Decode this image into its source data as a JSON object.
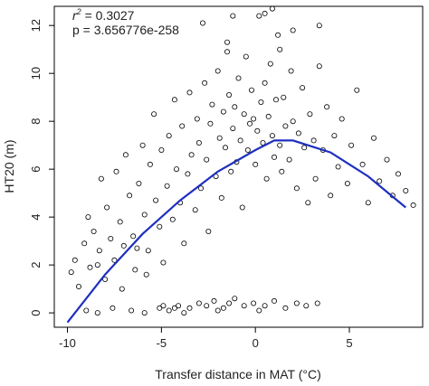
{
  "chart_data": {
    "type": "scatter",
    "xlabel": "Transfer distance in MAT (°C)",
    "ylabel": "HT20 (m)",
    "xlim": [
      -10.7,
      8.9
    ],
    "ylim": [
      -0.6,
      12.8
    ],
    "xticks": [
      -10,
      -5,
      0,
      5
    ],
    "yticks": [
      0,
      2,
      4,
      6,
      8,
      10,
      12
    ],
    "grid": false,
    "annotations": {
      "r2_label": "r",
      "r2_sup": "2",
      "r2_value": " = 0.3027",
      "p_text": "p = 3.656776e-258"
    },
    "point_style": {
      "marker": "open-circle",
      "color": "#000000"
    },
    "fit_curve": {
      "color": "#1f2fbf",
      "x": [
        -10,
        -8,
        -6,
        -4,
        -2,
        0,
        1,
        2,
        4,
        6,
        8
      ],
      "y": [
        -0.4,
        1.6,
        3.3,
        4.7,
        5.9,
        6.8,
        7.2,
        7.2,
        6.7,
        5.7,
        4.4
      ]
    },
    "series": [
      {
        "points": [
          [
            -9.8,
            1.7
          ],
          [
            -9.6,
            2.2
          ],
          [
            -9.4,
            1.1
          ],
          [
            -9.1,
            2.9
          ],
          [
            -8.9,
            4.0
          ],
          [
            -8.8,
            1.9
          ],
          [
            -8.6,
            3.4
          ],
          [
            -8.3,
            2.6
          ],
          [
            -8.2,
            5.6
          ],
          [
            -8.0,
            1.4
          ],
          [
            -7.9,
            4.4
          ],
          [
            -7.7,
            3.1
          ],
          [
            -7.5,
            2.2
          ],
          [
            -7.4,
            5.9
          ],
          [
            -7.2,
            3.8
          ],
          [
            -7.0,
            2.8
          ],
          [
            -6.9,
            6.6
          ],
          [
            -6.7,
            4.9
          ],
          [
            -6.5,
            3.2
          ],
          [
            -6.4,
            1.8
          ],
          [
            -6.2,
            5.4
          ],
          [
            -6.0,
            7.0
          ],
          [
            -5.9,
            4.1
          ],
          [
            -5.7,
            2.6
          ],
          [
            -5.6,
            6.2
          ],
          [
            -5.4,
            8.3
          ],
          [
            -5.3,
            4.7
          ],
          [
            -5.1,
            3.6
          ],
          [
            -5.0,
            6.8
          ],
          [
            -4.9,
            2.1
          ],
          [
            -4.7,
            5.3
          ],
          [
            -4.6,
            7.4
          ],
          [
            -4.4,
            3.9
          ],
          [
            -4.3,
            8.9
          ],
          [
            -4.2,
            6.0
          ],
          [
            -4.0,
            4.6
          ],
          [
            -3.9,
            7.8
          ],
          [
            -3.8,
            2.9
          ],
          [
            -3.6,
            5.8
          ],
          [
            -3.5,
            9.2
          ],
          [
            -3.4,
            6.6
          ],
          [
            -3.2,
            4.3
          ],
          [
            -3.1,
            8.1
          ],
          [
            -3.0,
            7.1
          ],
          [
            -2.9,
            5.2
          ],
          [
            -2.7,
            9.6
          ],
          [
            -2.6,
            6.4
          ],
          [
            -2.5,
            3.4
          ],
          [
            -2.4,
            7.9
          ],
          [
            -2.3,
            8.7
          ],
          [
            -2.1,
            5.7
          ],
          [
            -2.0,
            10.1
          ],
          [
            -1.9,
            7.3
          ],
          [
            -1.8,
            4.8
          ],
          [
            -1.7,
            8.4
          ],
          [
            -1.6,
            6.9
          ],
          [
            -1.5,
            11.3
          ],
          [
            -1.4,
            9.1
          ],
          [
            -1.3,
            5.9
          ],
          [
            -1.2,
            7.7
          ],
          [
            -1.1,
            8.6
          ],
          [
            -1.0,
            6.3
          ],
          [
            -0.9,
            9.8
          ],
          [
            -0.8,
            7.2
          ],
          [
            -0.7,
            4.4
          ],
          [
            -0.6,
            8.3
          ],
          [
            -0.5,
            10.7
          ],
          [
            -0.4,
            6.8
          ],
          [
            -0.3,
            7.9
          ],
          [
            -0.2,
            9.3
          ],
          [
            -0.1,
            8.1
          ],
          [
            0.0,
            6.2
          ],
          [
            0.1,
            7.6
          ],
          [
            0.2,
            12.4
          ],
          [
            0.3,
            8.8
          ],
          [
            0.4,
            7.1
          ],
          [
            0.5,
            9.6
          ],
          [
            0.6,
            5.6
          ],
          [
            0.7,
            8.2
          ],
          [
            0.8,
            10.4
          ],
          [
            0.9,
            7.4
          ],
          [
            1.0,
            6.5
          ],
          [
            1.1,
            8.9
          ],
          [
            1.2,
            11.6
          ],
          [
            1.3,
            7.0
          ],
          [
            1.4,
            5.9
          ],
          [
            1.5,
            9.0
          ],
          [
            1.6,
            7.8
          ],
          [
            1.8,
            6.4
          ],
          [
            1.9,
            10.1
          ],
          [
            2.0,
            8.0
          ],
          [
            2.2,
            5.2
          ],
          [
            2.3,
            7.5
          ],
          [
            2.5,
            9.4
          ],
          [
            2.6,
            6.9
          ],
          [
            2.8,
            4.6
          ],
          [
            2.9,
            8.3
          ],
          [
            3.1,
            7.2
          ],
          [
            3.2,
            5.6
          ],
          [
            3.4,
            10.3
          ],
          [
            3.6,
            6.8
          ],
          [
            3.8,
            8.6
          ],
          [
            4.0,
            4.9
          ],
          [
            4.2,
            7.4
          ],
          [
            4.4,
            6.1
          ],
          [
            4.6,
            8.1
          ],
          [
            4.9,
            5.4
          ],
          [
            5.1,
            7.0
          ],
          [
            5.4,
            9.3
          ],
          [
            5.7,
            6.2
          ],
          [
            6.0,
            4.6
          ],
          [
            6.3,
            7.3
          ],
          [
            6.6,
            5.5
          ],
          [
            7.0,
            6.4
          ],
          [
            7.3,
            4.9
          ],
          [
            7.6,
            5.8
          ],
          [
            8.0,
            5.1
          ],
          [
            8.4,
            4.5
          ],
          [
            -1.2,
            12.4
          ],
          [
            0.5,
            12.5
          ],
          [
            0.9,
            12.7
          ],
          [
            2.0,
            11.8
          ],
          [
            -2.8,
            12.1
          ],
          [
            3.4,
            12.0
          ],
          [
            1.3,
            11.0
          ],
          [
            -1.5,
            10.9
          ],
          [
            -8.4,
            2.0
          ],
          [
            -7.1,
            1.0
          ],
          [
            -6.3,
            2.7
          ],
          [
            -5.8,
            1.6
          ],
          [
            -9.0,
            0.1
          ],
          [
            -8.4,
            0.0
          ],
          [
            -7.6,
            0.2
          ],
          [
            -6.6,
            0.1
          ],
          [
            -5.9,
            0.0
          ],
          [
            -5.1,
            0.2
          ],
          [
            -4.6,
            0.1
          ],
          [
            -4.1,
            0.3
          ],
          [
            -3.5,
            0.2
          ],
          [
            -3.0,
            0.4
          ],
          [
            -2.6,
            0.3
          ],
          [
            -2.2,
            0.5
          ],
          [
            -1.7,
            0.2
          ],
          [
            -1.1,
            0.6
          ],
          [
            -0.6,
            0.3
          ],
          [
            -0.1,
            0.4
          ],
          [
            0.5,
            0.3
          ],
          [
            1.0,
            0.5
          ],
          [
            1.6,
            0.2
          ],
          [
            2.2,
            0.4
          ],
          [
            2.7,
            0.3
          ],
          [
            3.3,
            0.4
          ],
          [
            -3.8,
            0.0
          ],
          [
            -4.9,
            0.3
          ],
          [
            -2.0,
            0.1
          ],
          [
            0.2,
            0.1
          ],
          [
            -1.4,
            0.4
          ],
          [
            -4.3,
            0.2
          ]
        ]
      }
    ]
  }
}
